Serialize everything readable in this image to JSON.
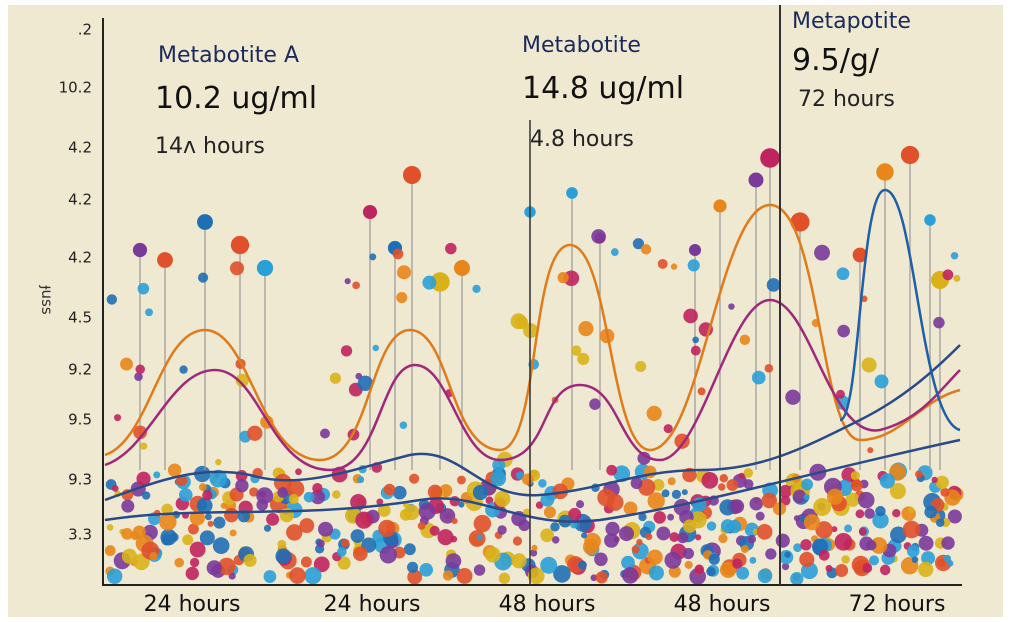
{
  "chart_data": {
    "type": "annotated-scatter",
    "y_axis_label": "ɟuss",
    "y_labels": [
      ".2",
      "10.2",
      "4.2",
      "4.2",
      "4.2",
      "4.5",
      "9.2",
      "9.5",
      "9.3",
      "3.3"
    ],
    "categories": [
      "24 hours",
      "24 hours",
      "48 hours",
      "48 hours",
      "72 hours"
    ],
    "annotations": [
      {
        "name": "Metabotite A",
        "amount": "10.2 ug/ml",
        "time": "14ᴧ hours"
      },
      {
        "name": "Metabotite",
        "amount": "14.8 ug/ml",
        "time": "4.8 hours"
      },
      {
        "name": "Metapotite",
        "amount": "9.5/g/",
        "time": "72 hours"
      }
    ]
  }
}
